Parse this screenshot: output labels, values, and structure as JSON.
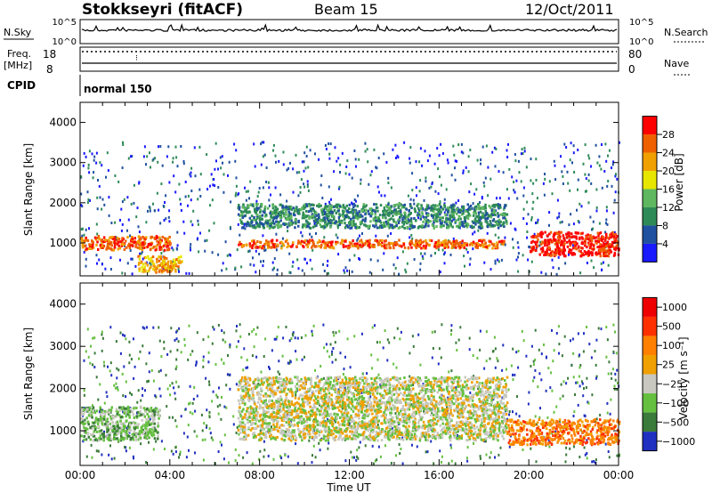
{
  "header": {
    "station": "Stokkseyri (fitACF)",
    "beam": "Beam 15",
    "date": "12/Oct/2011"
  },
  "params": {
    "nsky_label": "N.Sky",
    "nsearch_label": "N.Search",
    "freq_label": "Freq.",
    "freq_unit": "[MHz]",
    "nave_label": "Nave",
    "cpid_label": "CPID",
    "cpid_value": "normal 150",
    "noise_ticks": [
      "10^5",
      "10^0"
    ],
    "freq_ticks": [
      "18",
      "8"
    ],
    "nave_ticks": [
      "80",
      "0"
    ]
  },
  "chart_data": [
    {
      "type": "heatmap",
      "name": "power",
      "ylabel": "Slant Range [km]",
      "xlabel": "",
      "ylim": [
        180,
        4500
      ],
      "yticks": [
        "1000",
        "2000",
        "3000",
        "4000"
      ],
      "colorbar_label": "Power [dB]",
      "colorbar_ticks": [
        "4",
        "8",
        "12",
        "16",
        "20",
        "24",
        "28"
      ],
      "colors": [
        "#1a1aff",
        "#2050a0",
        "#2e8b57",
        "#5fb85f",
        "#e6e600",
        "#f0a000",
        "#ee6000",
        "#ff0000"
      ],
      "features": [
        {
          "t0": 0,
          "t1": 4,
          "r0": 850,
          "r1": 1200,
          "level": 6
        },
        {
          "t0": 2.5,
          "t1": 4.5,
          "r0": 300,
          "r1": 700,
          "level": 5
        },
        {
          "t0": 7,
          "t1": 19,
          "r0": 900,
          "r1": 1100,
          "level": 6
        },
        {
          "t0": 7,
          "t1": 19,
          "r0": 1400,
          "r1": 2000,
          "level": 2
        },
        {
          "t0": 20,
          "t1": 24,
          "r0": 700,
          "r1": 1300,
          "level": 7
        }
      ]
    },
    {
      "type": "heatmap",
      "name": "velocity",
      "ylabel": "Slant Range [km]",
      "xlabel": "Time UT",
      "ylim": [
        180,
        4500
      ],
      "yticks": [
        "1000",
        "2000",
        "3000",
        "4000"
      ],
      "xticks": [
        "00:00",
        "04:00",
        "08:00",
        "12:00",
        "16:00",
        "20:00",
        "00:00"
      ],
      "colorbar_label": "Velocity [m s⁻¹]",
      "colorbar_ticks": [
        "1000",
        "500",
        "100",
        "25",
        "−25",
        "−100",
        "−500",
        "−1000"
      ],
      "colors": [
        "#2030c0",
        "#3a7a3a",
        "#66c040",
        "#c8c8c0",
        "#f0a000",
        "#ff8000",
        "#ff3000",
        "#ee0000"
      ],
      "features": [
        {
          "t0": 0,
          "t1": 3.5,
          "r0": 800,
          "r1": 1600,
          "level": 2
        },
        {
          "t0": 7,
          "t1": 19,
          "r0": 800,
          "r1": 2300,
          "level": 3
        },
        {
          "t0": 19,
          "t1": 24,
          "r0": 700,
          "r1": 1300,
          "level": 5
        }
      ]
    }
  ]
}
